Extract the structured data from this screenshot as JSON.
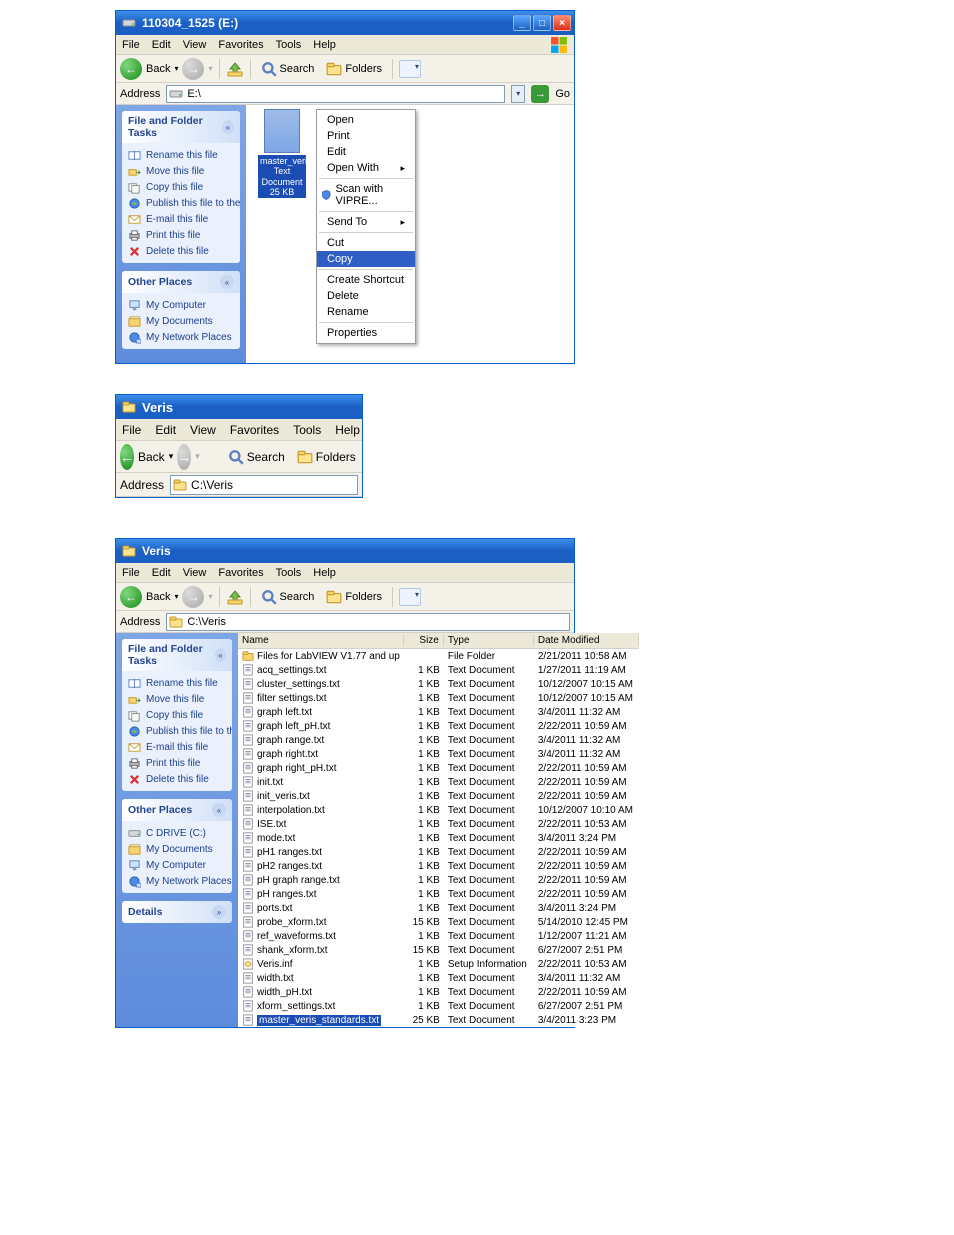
{
  "menus": [
    "File",
    "Edit",
    "View",
    "Favorites",
    "Tools",
    "Help"
  ],
  "toolbar": {
    "back": "Back",
    "search": "Search",
    "folders": "Folders"
  },
  "address_label": "Address",
  "go_label": "Go",
  "s1": {
    "title": "110304_1525 (E:)",
    "address": "E:\\",
    "selected_file": {
      "name": "master_veris_standards.txt",
      "type": "Text Document",
      "size": "25 KB"
    },
    "ctx": [
      {
        "t": "item",
        "label": "Open"
      },
      {
        "t": "item",
        "label": "Print"
      },
      {
        "t": "item",
        "label": "Edit"
      },
      {
        "t": "sub",
        "label": "Open With"
      },
      {
        "t": "sep"
      },
      {
        "t": "icon",
        "label": "Scan with VIPRE..."
      },
      {
        "t": "sep"
      },
      {
        "t": "sub",
        "label": "Send To"
      },
      {
        "t": "sep"
      },
      {
        "t": "item",
        "label": "Cut"
      },
      {
        "t": "hl",
        "label": "Copy"
      },
      {
        "t": "sep"
      },
      {
        "t": "item",
        "label": "Create Shortcut"
      },
      {
        "t": "item",
        "label": "Delete"
      },
      {
        "t": "item",
        "label": "Rename"
      },
      {
        "t": "sep"
      },
      {
        "t": "item",
        "label": "Properties"
      }
    ],
    "tasks_file": {
      "head": "File and Folder Tasks",
      "items": [
        {
          "ico": "rename",
          "label": "Rename this file"
        },
        {
          "ico": "move",
          "label": "Move this file"
        },
        {
          "ico": "copy",
          "label": "Copy this file"
        },
        {
          "ico": "publish",
          "label": "Publish this file to the Web"
        },
        {
          "ico": "email",
          "label": "E-mail this file"
        },
        {
          "ico": "print",
          "label": "Print this file"
        },
        {
          "ico": "delete",
          "label": "Delete this file"
        }
      ]
    },
    "tasks_places": {
      "head": "Other Places",
      "items": [
        {
          "ico": "mycomp",
          "label": "My Computer"
        },
        {
          "ico": "mydocs",
          "label": "My Documents"
        },
        {
          "ico": "network",
          "label": "My Network Places"
        }
      ]
    }
  },
  "s2": {
    "title": "Veris",
    "address": "C:\\Veris"
  },
  "s3": {
    "title": "Veris",
    "address": "C:\\Veris",
    "columns": [
      "Name",
      "Size",
      "Type",
      "Date Modified"
    ],
    "tasks_file": {
      "head": "File and Folder Tasks",
      "items": [
        {
          "ico": "rename",
          "label": "Rename this file"
        },
        {
          "ico": "move",
          "label": "Move this file"
        },
        {
          "ico": "copy",
          "label": "Copy this file"
        },
        {
          "ico": "publish",
          "label": "Publish this file to the Web"
        },
        {
          "ico": "email",
          "label": "E-mail this file"
        },
        {
          "ico": "print",
          "label": "Print this file"
        },
        {
          "ico": "delete",
          "label": "Delete this file"
        }
      ]
    },
    "tasks_places": {
      "head": "Other Places",
      "items": [
        {
          "ico": "drive",
          "label": "C DRIVE (C:)"
        },
        {
          "ico": "mydocs",
          "label": "My Documents"
        },
        {
          "ico": "mycomp",
          "label": "My Computer"
        },
        {
          "ico": "network",
          "label": "My Network Places"
        }
      ]
    },
    "details_head": "Details",
    "files": [
      {
        "ico": "folder",
        "name": "Files for LabVIEW V1.77 and up",
        "size": "",
        "type": "File Folder",
        "date": "2/21/2011 10:58 AM"
      },
      {
        "ico": "txt",
        "name": "acq_settings.txt",
        "size": "1 KB",
        "type": "Text Document",
        "date": "1/27/2011 11:19 AM"
      },
      {
        "ico": "txt",
        "name": "cluster_settings.txt",
        "size": "1 KB",
        "type": "Text Document",
        "date": "10/12/2007 10:15 AM"
      },
      {
        "ico": "txt",
        "name": "filter settings.txt",
        "size": "1 KB",
        "type": "Text Document",
        "date": "10/12/2007 10:15 AM"
      },
      {
        "ico": "txt",
        "name": "graph left.txt",
        "size": "1 KB",
        "type": "Text Document",
        "date": "3/4/2011 11:32 AM"
      },
      {
        "ico": "txt",
        "name": "graph left_pH.txt",
        "size": "1 KB",
        "type": "Text Document",
        "date": "2/22/2011 10:59 AM"
      },
      {
        "ico": "txt",
        "name": "graph range.txt",
        "size": "1 KB",
        "type": "Text Document",
        "date": "3/4/2011 11:32 AM"
      },
      {
        "ico": "txt",
        "name": "graph right.txt",
        "size": "1 KB",
        "type": "Text Document",
        "date": "3/4/2011 11:32 AM"
      },
      {
        "ico": "txt",
        "name": "graph right_pH.txt",
        "size": "1 KB",
        "type": "Text Document",
        "date": "2/22/2011 10:59 AM"
      },
      {
        "ico": "txt",
        "name": "init.txt",
        "size": "1 KB",
        "type": "Text Document",
        "date": "2/22/2011 10:59 AM"
      },
      {
        "ico": "txt",
        "name": "init_veris.txt",
        "size": "1 KB",
        "type": "Text Document",
        "date": "2/22/2011 10:59 AM"
      },
      {
        "ico": "txt",
        "name": "interpolation.txt",
        "size": "1 KB",
        "type": "Text Document",
        "date": "10/12/2007 10:10 AM"
      },
      {
        "ico": "txt",
        "name": "ISE.txt",
        "size": "1 KB",
        "type": "Text Document",
        "date": "2/22/2011 10:53 AM"
      },
      {
        "ico": "txt",
        "name": "mode.txt",
        "size": "1 KB",
        "type": "Text Document",
        "date": "3/4/2011 3:24 PM"
      },
      {
        "ico": "txt",
        "name": "pH1 ranges.txt",
        "size": "1 KB",
        "type": "Text Document",
        "date": "2/22/2011 10:59 AM"
      },
      {
        "ico": "txt",
        "name": "pH2 ranges.txt",
        "size": "1 KB",
        "type": "Text Document",
        "date": "2/22/2011 10:59 AM"
      },
      {
        "ico": "txt",
        "name": "pH graph range.txt",
        "size": "1 KB",
        "type": "Text Document",
        "date": "2/22/2011 10:59 AM"
      },
      {
        "ico": "txt",
        "name": "pH ranges.txt",
        "size": "1 KB",
        "type": "Text Document",
        "date": "2/22/2011 10:59 AM"
      },
      {
        "ico": "txt",
        "name": "ports.txt",
        "size": "1 KB",
        "type": "Text Document",
        "date": "3/4/2011 3:24 PM"
      },
      {
        "ico": "txt",
        "name": "probe_xform.txt",
        "size": "15 KB",
        "type": "Text Document",
        "date": "5/14/2010 12:45 PM"
      },
      {
        "ico": "txt",
        "name": "ref_waveforms.txt",
        "size": "1 KB",
        "type": "Text Document",
        "date": "1/12/2007 11:21 AM"
      },
      {
        "ico": "txt",
        "name": "shank_xform.txt",
        "size": "15 KB",
        "type": "Text Document",
        "date": "6/27/2007 2:51 PM"
      },
      {
        "ico": "inf",
        "name": "Veris.inf",
        "size": "1 KB",
        "type": "Setup Information",
        "date": "2/22/2011 10:53 AM"
      },
      {
        "ico": "txt",
        "name": "width.txt",
        "size": "1 KB",
        "type": "Text Document",
        "date": "3/4/2011 11:32 AM"
      },
      {
        "ico": "txt",
        "name": "width_pH.txt",
        "size": "1 KB",
        "type": "Text Document",
        "date": "2/22/2011 10:59 AM"
      },
      {
        "ico": "txt",
        "name": "xform_settings.txt",
        "size": "1 KB",
        "type": "Text Document",
        "date": "6/27/2007 2:51 PM"
      },
      {
        "ico": "txt",
        "name": "master_veris_standards.txt",
        "size": "25 KB",
        "type": "Text Document",
        "date": "3/4/2011 3:23 PM",
        "selected": true
      }
    ]
  }
}
